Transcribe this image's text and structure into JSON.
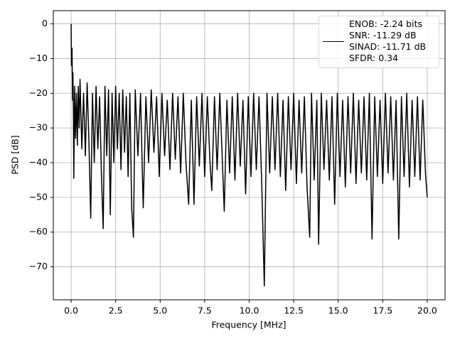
{
  "chart_data": {
    "type": "line",
    "xlabel": "Frequency [MHz]",
    "ylabel": "PSD [dB]",
    "grid": true,
    "legend": "upper right",
    "xlim": [
      -1,
      21
    ],
    "ylim": [
      -79.5,
      3.8
    ],
    "xticks": [
      {
        "value": 0,
        "label": "0.0"
      },
      2.5,
      {
        "value": 5,
        "label": "5.0"
      },
      7.5,
      {
        "value": 10,
        "label": "10.0"
      },
      12.5,
      {
        "value": 15,
        "label": "15.0"
      },
      17.5,
      {
        "value": 20,
        "label": "20.0"
      }
    ],
    "yticks": [
      0,
      {
        "value": -10,
        "label": "−10"
      },
      {
        "value": -20,
        "label": "−20"
      },
      {
        "value": -30,
        "label": "−30"
      },
      {
        "value": -40,
        "label": "−40"
      },
      {
        "value": -50,
        "label": "−50"
      },
      {
        "value": -60,
        "label": "−60"
      },
      {
        "value": -70,
        "label": "−70"
      }
    ],
    "x": [
      0,
      0.02,
      0.05,
      0.08,
      0.1,
      0.13,
      0.15,
      0.2,
      0.25,
      0.3,
      0.35,
      0.4,
      0.45,
      0.5,
      0.6,
      0.7,
      0.8,
      0.9,
      1.0,
      1.1,
      1.2,
      1.3,
      1.4,
      1.5,
      1.6,
      1.7,
      1.8,
      1.9,
      2.0,
      2.1,
      2.2,
      2.3,
      2.4,
      2.5,
      2.6,
      2.7,
      2.8,
      2.9,
      3.0,
      3.1,
      3.2,
      3.3,
      3.4,
      3.5,
      3.6,
      3.75,
      3.9,
      4.0,
      4.05,
      4.2,
      4.35,
      4.5,
      4.65,
      4.8,
      4.95,
      5.1,
      5.25,
      5.4,
      5.55,
      5.7,
      5.85,
      6.0,
      6.15,
      6.3,
      6.45,
      6.6,
      6.75,
      6.9,
      7.05,
      7.2,
      7.35,
      7.5,
      7.65,
      7.8,
      7.9,
      8.05,
      8.2,
      8.35,
      8.6,
      8.75,
      8.9,
      9.05,
      9.2,
      9.35,
      9.5,
      9.65,
      9.8,
      9.95,
      10.1,
      10.25,
      10.4,
      10.55,
      10.7,
      10.85,
      11.0,
      11.15,
      11.3,
      11.45,
      11.6,
      11.75,
      11.9,
      12.05,
      12.2,
      12.35,
      12.5,
      12.65,
      12.8,
      12.95,
      13.1,
      13.25,
      13.4,
      13.5,
      13.65,
      13.8,
      13.9,
      14.05,
      14.2,
      14.35,
      14.5,
      14.65,
      14.8,
      14.95,
      15.1,
      15.25,
      15.4,
      15.55,
      15.7,
      15.85,
      16.0,
      16.15,
      16.3,
      16.45,
      16.6,
      16.75,
      16.9,
      17.05,
      17.2,
      17.35,
      17.5,
      17.65,
      17.8,
      17.95,
      18.1,
      18.25,
      18.4,
      18.55,
      18.7,
      18.85,
      19.0,
      19.15,
      19.3,
      19.45,
      19.6,
      19.75,
      19.9,
      20.0
    ],
    "series": [
      {
        "name": "ENOB: -2.24 bits\nSNR: -11.29 dB\nSINAD: -11.71 dB\nSFDR: 0.34",
        "color": "#000000",
        "values": [
          0,
          -12,
          -7,
          -22,
          -14,
          -26,
          -44.5,
          -18,
          -33,
          -20,
          -35,
          -18,
          -30,
          -16,
          -36,
          -20,
          -38,
          -17,
          -34,
          -56,
          -20,
          -40,
          -18,
          -36,
          -21,
          -43,
          -59,
          -18,
          -38,
          -19,
          -55,
          -20,
          -40,
          -18,
          -36,
          -20,
          -42,
          -19,
          -37,
          -21,
          -44,
          -20,
          -53,
          -61.5,
          -19,
          -38,
          -20,
          -43,
          -53,
          -21,
          -40,
          -19,
          -37,
          -21,
          -44,
          -20,
          -38,
          -22,
          -42,
          -20,
          -39,
          -21,
          -43,
          -20,
          -40,
          -52,
          -22,
          -52,
          -21,
          -41,
          -20,
          -44,
          -21,
          -40,
          -48,
          -21,
          -42,
          -20,
          -54,
          -22,
          -43,
          -21,
          -45,
          -20,
          -41,
          -22,
          -49,
          -21,
          -44,
          -20,
          -42,
          -21,
          -45,
          -75.5,
          -20,
          -43,
          -21,
          -42,
          -20,
          -44,
          -22,
          -48,
          -21,
          -42,
          -20,
          -46,
          -22,
          -43,
          -21,
          -47,
          -61.5,
          -20,
          -45,
          -22,
          -63.5,
          -20,
          -42,
          -22,
          -45,
          -21,
          -52,
          -20,
          -44,
          -22,
          -47,
          -21,
          -43,
          -20,
          -46,
          -22,
          -43,
          -21,
          -45,
          -20,
          -62,
          -21,
          -44,
          -22,
          -46,
          -20,
          -43,
          -21,
          -45,
          -22,
          -62,
          -21,
          -44,
          -20,
          -47,
          -22,
          -44,
          -21,
          -45,
          -22,
          -43,
          -50
        ]
      }
    ]
  }
}
